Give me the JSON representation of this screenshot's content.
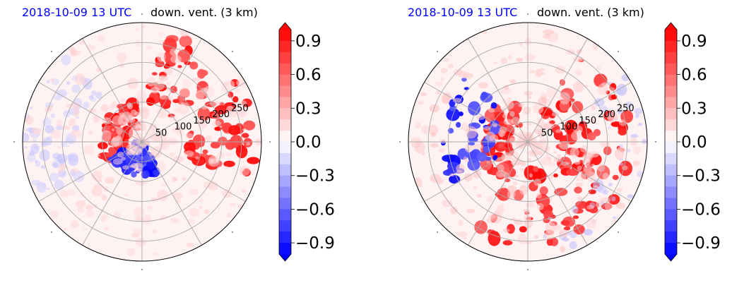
{
  "panels": [
    {
      "date_label": "2018-10-09 13 UTC",
      "variable_label": "down. vent. (3 km)",
      "radial_ticks": [
        "50",
        "100",
        "150",
        "200",
        "250"
      ]
    },
    {
      "date_label": "2018-10-09 13 UTC",
      "variable_label": "down. vent. (3 km)",
      "radial_ticks": [
        "50",
        "100",
        "150",
        "200",
        "250"
      ]
    }
  ],
  "colorbar": {
    "ticks": [
      "0.9",
      "0.6",
      "0.3",
      "0.0",
      "−0.3",
      "−0.6",
      "−0.9"
    ],
    "colors": {
      "max": "#ff0000",
      "mid": "#ffffff",
      "min": "#0000ff"
    }
  },
  "chart_data": [
    {
      "type": "heatmap",
      "projection": "polar",
      "title": "2018-10-09 13 UTC down. vent. (3 km)",
      "radial_ticks": [
        50,
        100,
        150,
        200,
        250
      ],
      "angular_gridlines_deg": [
        0,
        30,
        60,
        90,
        120,
        150,
        180,
        210,
        240,
        270,
        300,
        330
      ],
      "colorbar_range": [
        -1.0,
        1.0
      ],
      "colorbar_ticks": [
        0.9,
        0.6,
        0.3,
        0.0,
        -0.3,
        -0.6,
        -0.9
      ],
      "colormap": "bwr"
    },
    {
      "type": "heatmap",
      "projection": "polar",
      "title": "2018-10-09 13 UTC down. vent. (3 km)",
      "radial_ticks": [
        50,
        100,
        150,
        200,
        250
      ],
      "angular_gridlines_deg": [
        0,
        30,
        60,
        90,
        120,
        150,
        180,
        210,
        240,
        270,
        300,
        330
      ],
      "colorbar_range": [
        -1.0,
        1.0
      ],
      "colorbar_ticks": [
        0.9,
        0.6,
        0.3,
        0.0,
        -0.3,
        -0.6,
        -0.9
      ],
      "colormap": "bwr"
    }
  ]
}
